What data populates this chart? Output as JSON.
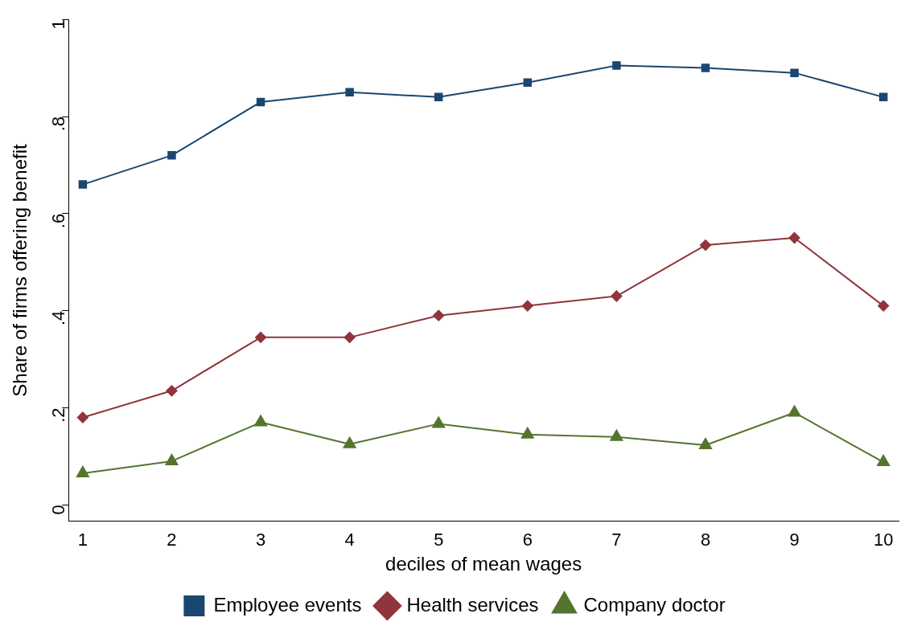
{
  "chart_data": {
    "type": "line",
    "xlabel": "deciles of mean wages",
    "ylabel": "Share of firms offering benefit",
    "x": [
      1,
      2,
      3,
      4,
      5,
      6,
      7,
      8,
      9,
      10
    ],
    "series": [
      {
        "name": "Employee events",
        "color": "#1a476f",
        "marker": "square",
        "values": [
          0.66,
          0.72,
          0.83,
          0.85,
          0.84,
          0.87,
          0.905,
          0.9,
          0.89,
          0.84
        ]
      },
      {
        "name": "Health services",
        "color": "#90353b",
        "marker": "diamond",
        "values": [
          0.18,
          0.235,
          0.345,
          0.345,
          0.39,
          0.41,
          0.43,
          0.535,
          0.55,
          0.41
        ]
      },
      {
        "name": "Company doctor",
        "color": "#55752f",
        "marker": "triangle",
        "values": [
          0.065,
          0.09,
          0.17,
          0.125,
          0.167,
          0.145,
          0.14,
          0.123,
          0.19,
          0.088
        ]
      }
    ],
    "xlim": [
      0.84,
      10.17
    ],
    "xticks": [
      1,
      2,
      3,
      4,
      5,
      6,
      7,
      8,
      9,
      10
    ],
    "ylim": [
      -0.034,
      1
    ],
    "yticks": [
      0,
      {
        "value": 0.2,
        "label": ".2"
      },
      {
        "value": 0.4,
        "label": ".4"
      },
      {
        "value": 0.6,
        "label": ".6"
      },
      {
        "value": 0.8,
        "label": ".8"
      },
      1
    ],
    "grid": false,
    "legend": "bottom",
    "line_style": "solid"
  }
}
